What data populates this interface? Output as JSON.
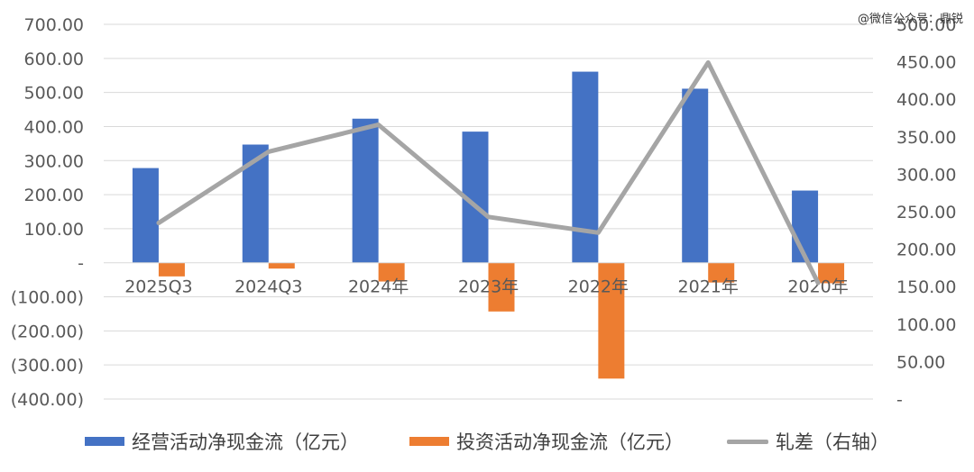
{
  "watermark": "@微信公众号：鼎锐",
  "colors": {
    "operating": "#4472C4",
    "investing": "#ED7D31",
    "spread": "#A5A5A5",
    "gridline": "#D9D9D9"
  },
  "chart_data": {
    "type": "bar",
    "categories": [
      "2025Q3",
      "2024Q3",
      "2024年",
      "2023年",
      "2022年",
      "2021年",
      "2020年"
    ],
    "series": [
      {
        "name": "经营活动净现金流（亿元）",
        "type": "bar",
        "axis": "left",
        "values": [
          278,
          347,
          423,
          385,
          561,
          511,
          212
        ]
      },
      {
        "name": "投资活动净现金流（亿元）",
        "type": "bar",
        "axis": "left",
        "values": [
          -40,
          -17,
          -55,
          -143,
          -340,
          -58,
          -60
        ]
      },
      {
        "name": "轧差（右轴）",
        "type": "line",
        "axis": "right",
        "values": [
          235,
          330,
          366,
          243,
          222,
          449,
          155
        ]
      }
    ],
    "left_axis": {
      "ylim": [
        -400,
        700
      ],
      "ticks": [
        700,
        600,
        500,
        400,
        300,
        200,
        100,
        0,
        -100,
        -200,
        -300,
        -400
      ],
      "tick_labels": [
        "700.00",
        "600.00",
        "500.00",
        "400.00",
        "300.00",
        "200.00",
        "100.00",
        "-",
        "(100.00)",
        "(200.00)",
        "(300.00)",
        "(400.00)"
      ]
    },
    "right_axis": {
      "ylim": [
        0,
        500
      ],
      "ticks": [
        500,
        450,
        400,
        350,
        300,
        250,
        200,
        150,
        100,
        50,
        0
      ],
      "tick_labels": [
        "500.00",
        "450.00",
        "400.00",
        "350.00",
        "300.00",
        "250.00",
        "200.00",
        "150.00",
        "100.00",
        "50.00",
        "-"
      ]
    },
    "grid": true,
    "legend_position": "bottom"
  },
  "legend": {
    "operating_label": "经营活动净现金流（亿元）",
    "investing_label": "投资活动净现金流（亿元）",
    "spread_label": "轧差（右轴）"
  }
}
